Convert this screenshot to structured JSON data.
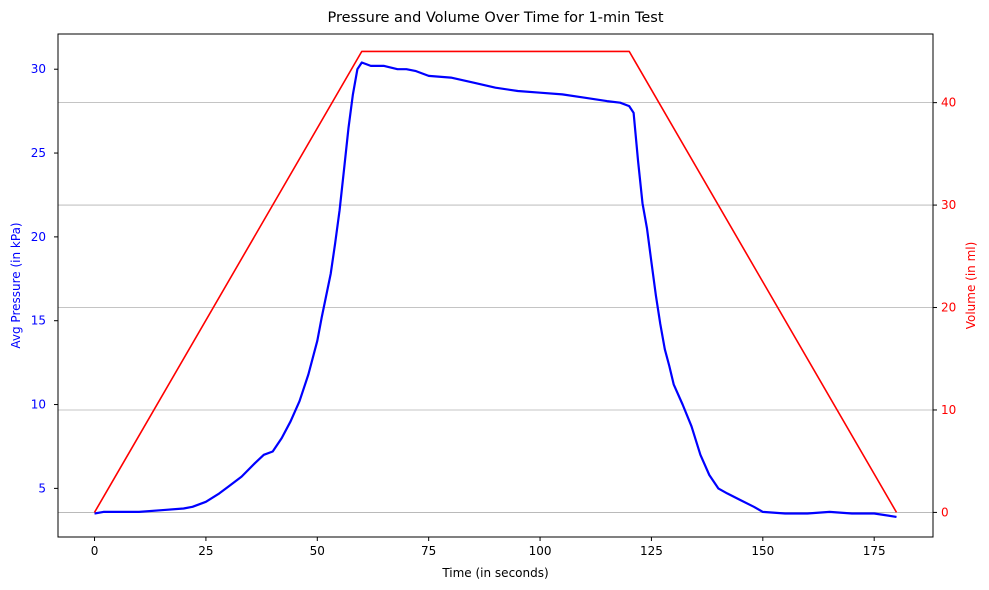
{
  "chart_data": {
    "type": "line",
    "title": "Pressure and Volume Over Time for 1-min Test",
    "xlabel": "Time (in seconds)",
    "ylabel_left": "Avg Pressure (in kPa)",
    "ylabel_right": "Volume (in ml)",
    "xlim": [
      -8.2,
      188.2
    ],
    "ylim_left": [
      2.1,
      32.1
    ],
    "ylim_right": [
      -2.4,
      46.7
    ],
    "x_ticks": [
      0,
      25,
      50,
      75,
      100,
      125,
      150,
      175
    ],
    "y_left_ticks": [
      5,
      10,
      15,
      20,
      25,
      30
    ],
    "y_right_ticks": [
      0,
      10,
      20,
      30,
      40
    ],
    "grid": "horizontal gridlines at right-axis ticks",
    "series": [
      {
        "name": "Avg Pressure",
        "axis": "left",
        "color": "#0000ff",
        "x": [
          0,
          2,
          5,
          10,
          15,
          20,
          22,
          25,
          28,
          30,
          33,
          36,
          38,
          40,
          42,
          44,
          46,
          48,
          50,
          51,
          52,
          53,
          54,
          55,
          56,
          57,
          58,
          59,
          60,
          62,
          65,
          68,
          70,
          72,
          75,
          80,
          85,
          90,
          95,
          100,
          105,
          110,
          115,
          118,
          120,
          121,
          122,
          123,
          124,
          125,
          126,
          127,
          128,
          129,
          130,
          132,
          134,
          136,
          138,
          140,
          142,
          145,
          148,
          150,
          155,
          160,
          165,
          170,
          175,
          180
        ],
        "y": [
          3.5,
          3.6,
          3.6,
          3.6,
          3.7,
          3.8,
          3.9,
          4.2,
          4.7,
          5.1,
          5.7,
          6.5,
          7.0,
          7.2,
          8.0,
          9.0,
          10.2,
          11.8,
          13.8,
          15.2,
          16.5,
          17.8,
          19.6,
          21.6,
          24.0,
          26.5,
          28.5,
          30.0,
          30.4,
          30.2,
          30.2,
          30.0,
          30.0,
          29.9,
          29.6,
          29.5,
          29.2,
          28.9,
          28.7,
          28.6,
          28.5,
          28.3,
          28.1,
          28.0,
          27.8,
          27.4,
          24.5,
          22.0,
          20.5,
          18.5,
          16.5,
          14.8,
          13.3,
          12.3,
          11.2,
          10.0,
          8.7,
          7.0,
          5.8,
          5.0,
          4.7,
          4.3,
          3.9,
          3.6,
          3.5,
          3.5,
          3.6,
          3.5,
          3.5,
          3.3
        ]
      },
      {
        "name": "Volume",
        "axis": "right",
        "color": "#ff0000",
        "x": [
          0,
          60,
          120,
          180
        ],
        "y": [
          0,
          45,
          45,
          0
        ]
      }
    ]
  }
}
